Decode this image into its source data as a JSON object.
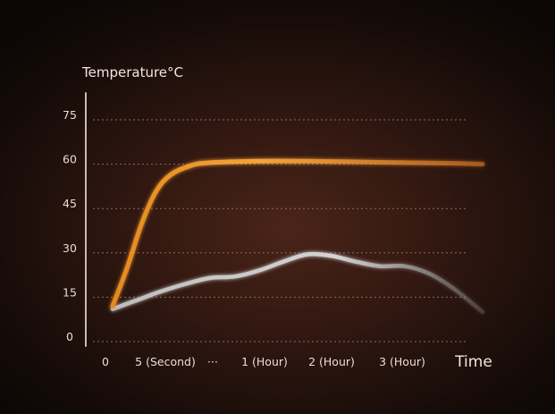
{
  "chart_data": {
    "type": "line",
    "title": "",
    "ylabel": "Temperature°C",
    "xlabel": "Time",
    "ylim": [
      0,
      75
    ],
    "yticks": [
      0,
      15,
      30,
      45,
      60,
      75
    ],
    "x_tick_labels": [
      "0",
      "5 (Second)",
      "···",
      "1 (Hour)",
      "2 (Hour)",
      "3 (Hour)"
    ],
    "grid": true,
    "colors": {
      "heated": "#f29a2e",
      "ambient": "#cfcfcf",
      "text": "#ede2db",
      "grid": "#8a6a5e"
    },
    "series": [
      {
        "key": "heated",
        "points": [
          [
            0,
            12
          ],
          [
            0.3,
            25
          ],
          [
            0.6,
            40
          ],
          [
            0.9,
            51
          ],
          [
            1.2,
            56.5
          ],
          [
            1.6,
            59.5
          ],
          [
            2.0,
            60.5
          ],
          [
            3.0,
            61
          ],
          [
            4.0,
            61
          ],
          [
            5.0,
            60.8
          ],
          [
            6.0,
            60.5
          ],
          [
            7.0,
            60.3
          ],
          [
            7.6,
            60
          ]
        ]
      },
      {
        "key": "ambient",
        "points": [
          [
            0,
            11
          ],
          [
            0.5,
            14
          ],
          [
            1.0,
            17
          ],
          [
            1.5,
            19.5
          ],
          [
            2.0,
            21.5
          ],
          [
            2.5,
            22
          ],
          [
            3.0,
            24
          ],
          [
            3.5,
            27
          ],
          [
            4.0,
            29.5
          ],
          [
            4.5,
            29
          ],
          [
            5.0,
            27
          ],
          [
            5.5,
            25.5
          ],
          [
            6.0,
            25.5
          ],
          [
            6.5,
            23
          ],
          [
            7.0,
            18
          ],
          [
            7.6,
            10
          ]
        ]
      }
    ]
  }
}
